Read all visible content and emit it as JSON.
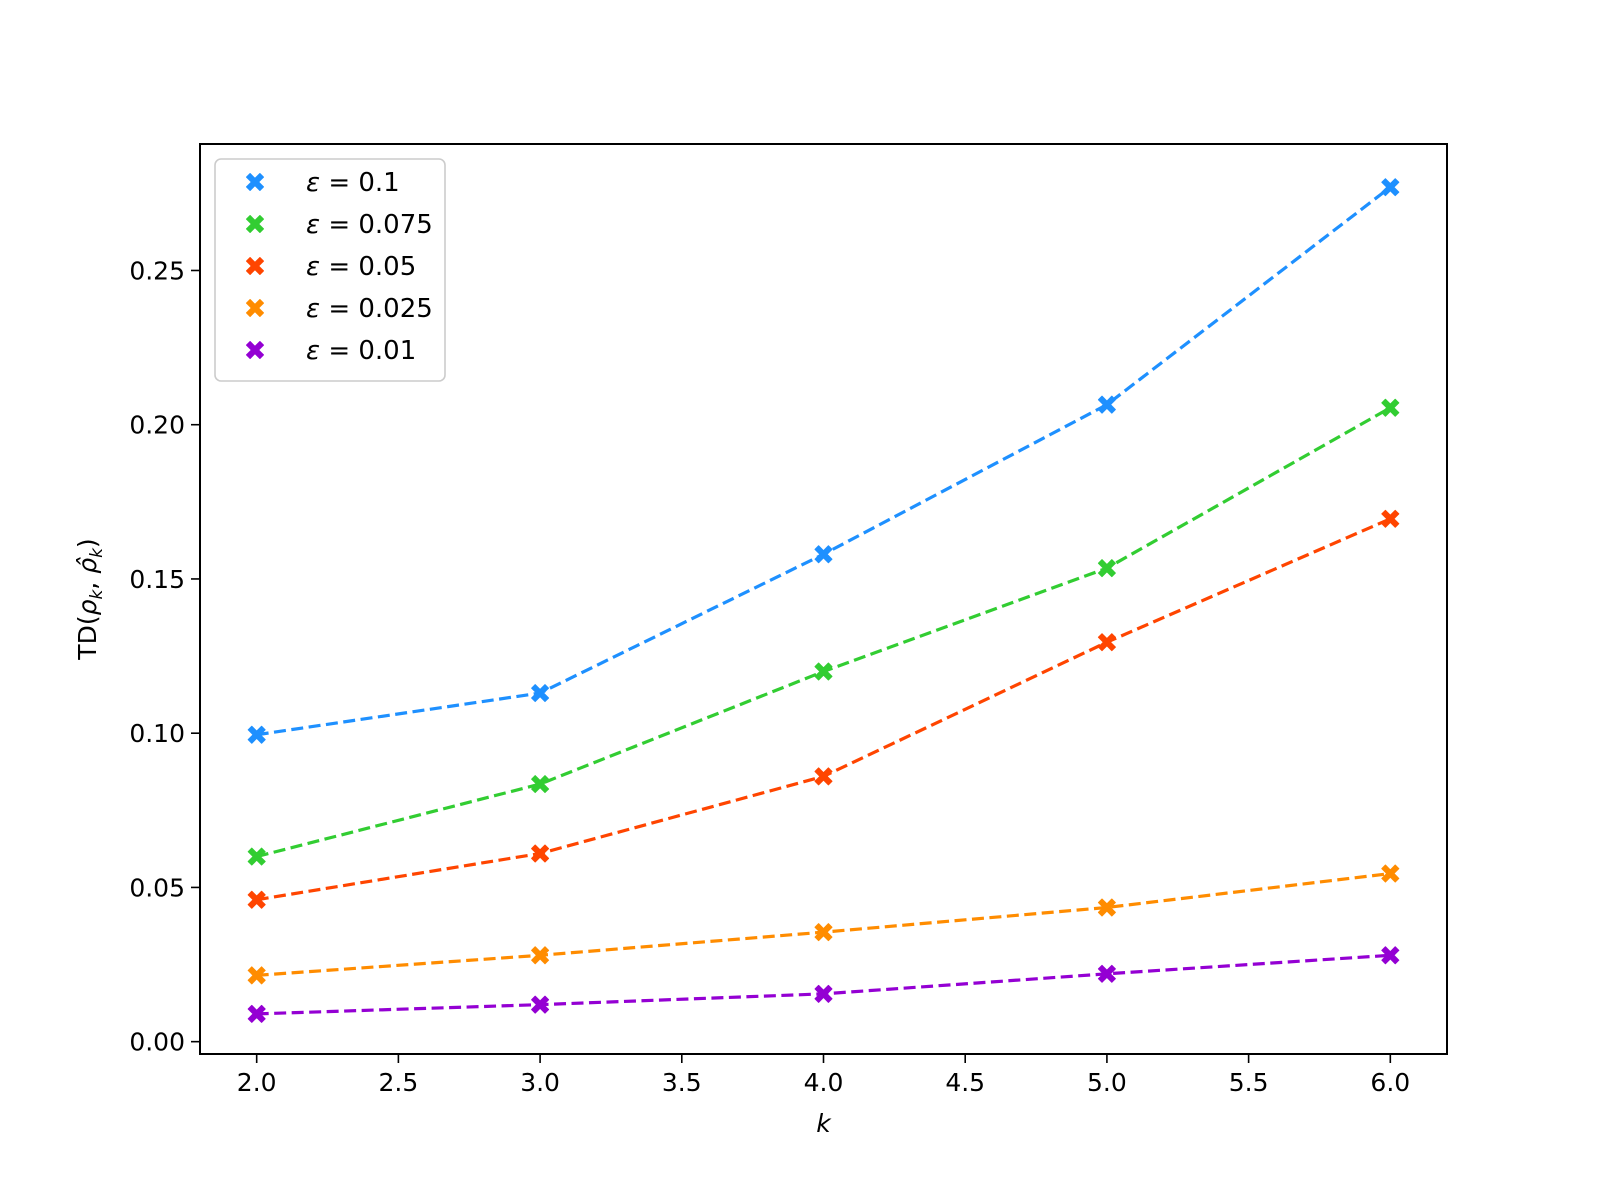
{
  "chart_data": {
    "type": "line",
    "title": "",
    "xlabel": "k",
    "ylabel_parts": {
      "prefix": "TD(",
      "rho": "ρ",
      "sub": "k",
      "sep": ", ",
      "rhohat": "ρ̂",
      "suffix": ")"
    },
    "xlim": [
      1.8,
      6.2
    ],
    "ylim": [
      -0.004,
      0.291
    ],
    "xticks": [
      2.0,
      2.5,
      3.0,
      3.5,
      4.0,
      4.5,
      5.0,
      5.5,
      6.0
    ],
    "xtick_labels": [
      "2.0",
      "2.5",
      "3.0",
      "3.5",
      "4.0",
      "4.5",
      "5.0",
      "5.5",
      "6.0"
    ],
    "yticks": [
      0.0,
      0.05,
      0.1,
      0.15,
      0.2,
      0.25
    ],
    "ytick_labels": [
      "0.00",
      "0.05",
      "0.10",
      "0.15",
      "0.20",
      "0.25"
    ],
    "grid": false,
    "legend_position": "top-left",
    "line_style": "dashed",
    "marker": "X",
    "x": [
      2,
      3,
      4,
      5,
      6
    ],
    "series": [
      {
        "name": "ε = 0.1",
        "eps_value": "0.1",
        "color": "#1e90ff",
        "values": [
          0.0995,
          0.113,
          0.158,
          0.2065,
          0.277
        ]
      },
      {
        "name": "ε = 0.075",
        "eps_value": "0.075",
        "color": "#32cd32",
        "values": [
          0.06,
          0.0835,
          0.12,
          0.1535,
          0.2055
        ]
      },
      {
        "name": "ε = 0.05",
        "eps_value": "0.05",
        "color": "#ff4500",
        "values": [
          0.046,
          0.061,
          0.086,
          0.1295,
          0.1695
        ]
      },
      {
        "name": "ε = 0.025",
        "eps_value": "0.025",
        "color": "#ff8c00",
        "values": [
          0.0215,
          0.028,
          0.0355,
          0.0435,
          0.0545
        ]
      },
      {
        "name": "ε = 0.01",
        "eps_value": "0.01",
        "color": "#9400d3",
        "values": [
          0.009,
          0.012,
          0.0155,
          0.022,
          0.028
        ]
      }
    ]
  }
}
